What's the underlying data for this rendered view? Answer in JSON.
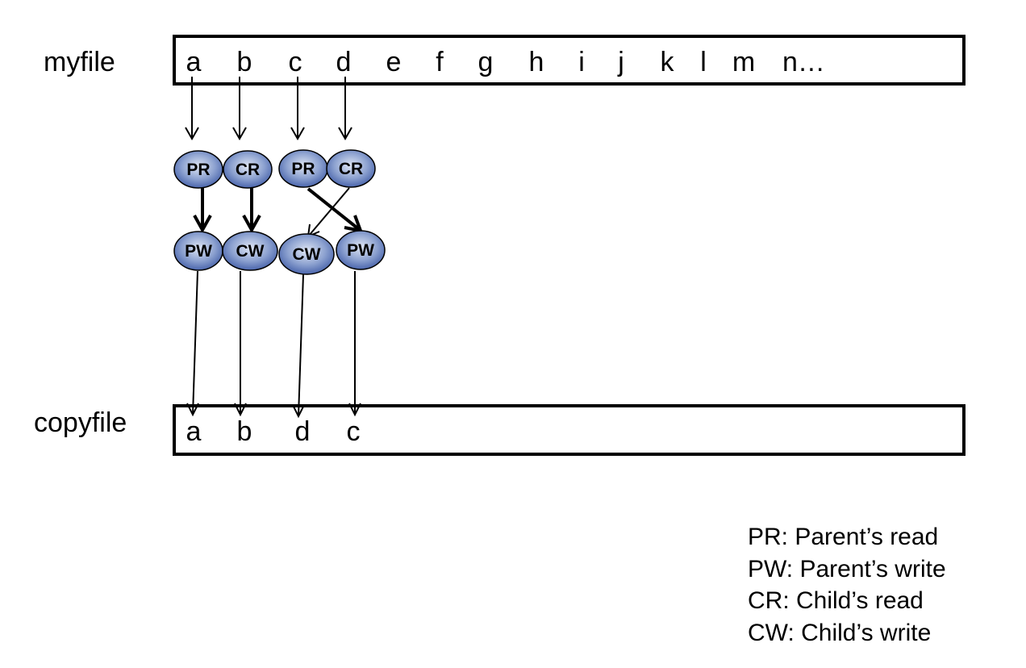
{
  "myfile": {
    "label": "myfile",
    "chars": [
      "a",
      "b",
      "c",
      "d",
      "e",
      "f",
      "g",
      "h",
      "i",
      "j",
      "k",
      "l",
      "m",
      "n…"
    ]
  },
  "copyfile": {
    "label": "copyfile",
    "chars": [
      "a",
      "b",
      "d",
      "c"
    ]
  },
  "nodes": [
    "PR",
    "CR",
    "PR",
    "CR",
    "PW",
    "CW",
    "CW",
    "PW"
  ],
  "legend": [
    "PR: Parent’s read",
    "PW: Parent’s write",
    "CR: Child’s read",
    "CW: Child’s write"
  ],
  "colors": {
    "node_fill_light": "#dfe6f4",
    "node_fill_dark": "#3f5ba6",
    "stroke": "#000000"
  }
}
